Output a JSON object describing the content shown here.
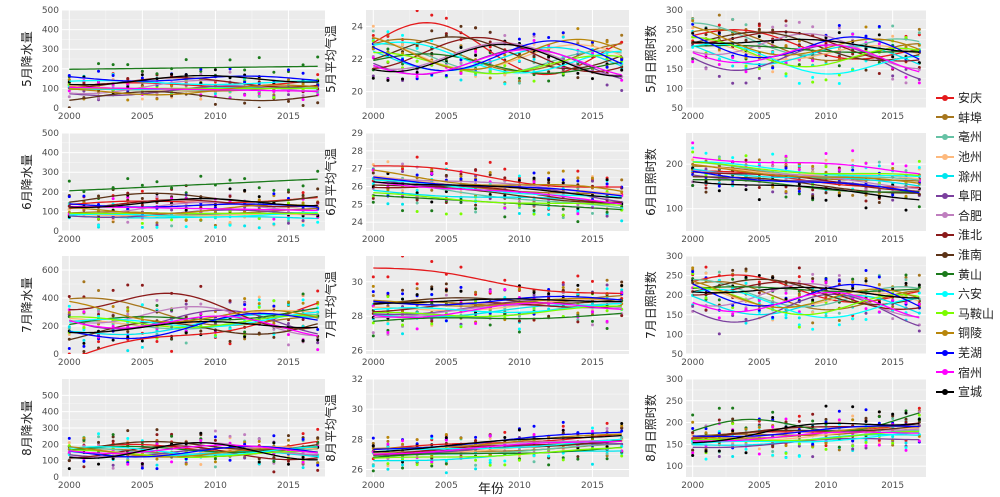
{
  "chart_data": {
    "type": "scatter",
    "x_axis_label": "年份",
    "x_range": [
      1999.5,
      2017.5
    ],
    "x_ticks": [
      2000,
      2005,
      2010,
      2015
    ],
    "legend": {
      "placement": "right",
      "entries": [
        {
          "name": "安庆",
          "color": "#e41a1c"
        },
        {
          "name": "蚌埠",
          "color": "#a6761d"
        },
        {
          "name": "亳州",
          "color": "#66c2a5"
        },
        {
          "name": "池州",
          "color": "#fdb97d"
        },
        {
          "name": "滁州",
          "color": "#00e5ee"
        },
        {
          "name": "阜阳",
          "color": "#7b3f9e"
        },
        {
          "name": "合肥",
          "color": "#bf7fbf"
        },
        {
          "name": "淮北",
          "color": "#8b1a1a"
        },
        {
          "name": "淮南",
          "color": "#5c3317"
        },
        {
          "name": "黄山",
          "color": "#1b7a1b"
        },
        {
          "name": "六安",
          "color": "#00ffff"
        },
        {
          "name": "马鞍山",
          "color": "#7cfc00"
        },
        {
          "name": "铜陵",
          "color": "#b8860b"
        },
        {
          "name": "芜湖",
          "color": "#0000ff"
        },
        {
          "name": "宿州",
          "color": "#ff00ff"
        },
        {
          "name": "宣城",
          "color": "#000000"
        }
      ]
    },
    "panels": [
      {
        "ylabel": "5月降水量",
        "ylim": [
          0,
          500
        ],
        "yticks": [
          0,
          100,
          200,
          300,
          400,
          500
        ],
        "base": [
          120,
          95,
          95,
          100,
          100,
          90,
          110,
          130,
          60,
          205,
          130,
          100,
          90,
          150,
          95,
          145
        ],
        "trend": [
          25,
          15,
          10,
          -10,
          0,
          20,
          15,
          5,
          10,
          15,
          0,
          0,
          20,
          -10,
          -20,
          15
        ],
        "wave": [
          15,
          10,
          5,
          10,
          5,
          20,
          30,
          25,
          25,
          0,
          10,
          0,
          20,
          15,
          0,
          20
        ],
        "noise": 50
      },
      {
        "ylabel": "5月平均气温",
        "ylim": [
          19,
          25
        ],
        "yticks": [
          20,
          22,
          24
        ],
        "base": [
          22.6,
          22.2,
          21.9,
          22.2,
          22,
          21.8,
          22.1,
          22.3,
          22.4,
          21.7,
          22,
          21.7,
          22.3,
          22.2,
          21.8,
          22
        ],
        "trend": [
          -0.8,
          -0.3,
          -0.5,
          -0.7,
          -0.4,
          -0.5,
          -0.4,
          -0.2,
          -0.3,
          -0.4,
          -0.6,
          -0.2,
          -0.3,
          -0.4,
          -0.2,
          -0.3
        ],
        "wave": [
          1.4,
          0.9,
          0.8,
          0.9,
          0.8,
          0.9,
          0.9,
          1,
          0.9,
          0.5,
          0.8,
          0.6,
          1,
          1,
          0.8,
          0.9
        ],
        "noise": 0.8
      },
      {
        "ylabel": "5月日照时数",
        "ylim": [
          50,
          300
        ],
        "yticks": [
          50,
          100,
          150,
          200,
          250,
          300
        ],
        "base": [
          210,
          205,
          215,
          195,
          185,
          175,
          205,
          215,
          210,
          200,
          170,
          185,
          210,
          205,
          185,
          215
        ],
        "trend": [
          -50,
          -40,
          -45,
          -35,
          -30,
          -35,
          -40,
          -50,
          -45,
          -15,
          -35,
          -30,
          -45,
          -40,
          -35,
          -25
        ],
        "wave": [
          25,
          30,
          30,
          25,
          30,
          40,
          35,
          25,
          25,
          5,
          30,
          30,
          30,
          35,
          30,
          10
        ],
        "noise": 40
      },
      {
        "ylabel": "6月降水量",
        "ylim": [
          0,
          500
        ],
        "yticks": [
          0,
          100,
          200,
          300,
          400,
          500
        ],
        "base": [
          150,
          95,
          85,
          80,
          70,
          90,
          120,
          140,
          170,
          235,
          80,
          90,
          110,
          130,
          115,
          145
        ],
        "trend": [
          30,
          20,
          10,
          0,
          -10,
          15,
          20,
          10,
          15,
          60,
          10,
          0,
          15,
          -10,
          -20,
          10
        ],
        "wave": [
          10,
          10,
          5,
          5,
          5,
          15,
          25,
          20,
          25,
          0,
          10,
          0,
          20,
          10,
          0,
          20
        ],
        "noise": 60
      },
      {
        "ylabel": "6月平均气温",
        "ylim": [
          23.5,
          29
        ],
        "yticks": [
          24,
          25,
          26,
          27,
          28,
          29
        ],
        "base": [
          26.5,
          25.9,
          25.5,
          26,
          25.4,
          25.9,
          26.1,
          25.7,
          25.6,
          25.1,
          25.8,
          25.2,
          26.2,
          26,
          25.7,
          25.9
        ],
        "trend": [
          -1.3,
          -0.9,
          -1.6,
          -1,
          -0.7,
          -1.2,
          -1,
          -0.9,
          -1.1,
          -0.8,
          -1,
          -0.7,
          -1.1,
          -1,
          -1.2,
          -0.9
        ],
        "wave": [
          0.2,
          0.1,
          0.1,
          0.1,
          0.1,
          0.2,
          0.1,
          0.2,
          0.1,
          0,
          0.1,
          0.1,
          0.2,
          0.1,
          0.1,
          0.1
        ],
        "noise": 1
      },
      {
        "ylabel": "6月日照时数",
        "ylim": [
          50,
          270
        ],
        "yticks": [
          100,
          200
        ],
        "base": [
          165,
          175,
          180,
          180,
          170,
          160,
          170,
          165,
          155,
          150,
          185,
          185,
          175,
          160,
          200,
          145
        ],
        "trend": [
          -40,
          -35,
          -40,
          -30,
          -35,
          -35,
          -40,
          -45,
          -40,
          -30,
          -35,
          -30,
          -40,
          -45,
          -35,
          -40
        ],
        "wave": [
          5,
          5,
          5,
          5,
          5,
          5,
          5,
          5,
          5,
          5,
          5,
          5,
          5,
          5,
          5,
          5
        ],
        "noise": 35
      },
      {
        "ylabel": "7月降水量",
        "ylim": [
          0,
          700
        ],
        "yticks": [
          0,
          200,
          400,
          600
        ],
        "base": [
          150,
          280,
          220,
          250,
          210,
          240,
          260,
          330,
          180,
          260,
          230,
          230,
          280,
          200,
          220,
          200
        ],
        "trend": [
          380,
          -150,
          50,
          60,
          120,
          -60,
          -100,
          -150,
          80,
          100,
          60,
          10,
          -90,
          120,
          -80,
          40
        ],
        "wave": [
          40,
          60,
          40,
          40,
          40,
          80,
          80,
          90,
          60,
          30,
          40,
          40,
          60,
          60,
          60,
          30
        ],
        "noise": 120
      },
      {
        "ylabel": "7月平均气温",
        "ylim": [
          25.8,
          31.5
        ],
        "yticks": [
          26,
          28,
          30
        ],
        "base": [
          30,
          28.8,
          28.2,
          28.6,
          28.3,
          28.6,
          28.4,
          28.6,
          28.9,
          27.9,
          28.4,
          28.2,
          28.8,
          28.9,
          28.4,
          28.9
        ],
        "trend": [
          -1.6,
          0.4,
          0.7,
          0.5,
          0.6,
          0.8,
          0.6,
          0.3,
          0.2,
          0.4,
          0.3,
          0.4,
          0.1,
          0.2,
          0.5,
          0.1
        ],
        "wave": [
          0.2,
          0.2,
          0.2,
          0.2,
          0.2,
          0.2,
          0.2,
          0.2,
          0.2,
          0.1,
          0.2,
          0.2,
          0.2,
          0.2,
          0.3,
          0.1
        ],
        "noise": 1
      },
      {
        "ylabel": "7月日照时数",
        "ylim": [
          50,
          300
        ],
        "yticks": [
          50,
          100,
          150,
          200,
          250,
          300
        ],
        "base": [
          215,
          195,
          200,
          190,
          175,
          165,
          195,
          205,
          210,
          215,
          175,
          180,
          195,
          200,
          180,
          210
        ],
        "trend": [
          -40,
          -25,
          -20,
          -30,
          -25,
          -20,
          -30,
          -40,
          -30,
          -5,
          -25,
          -20,
          -30,
          -35,
          -25,
          -15
        ],
        "wave": [
          25,
          30,
          30,
          25,
          30,
          40,
          35,
          25,
          25,
          5,
          30,
          30,
          30,
          35,
          30,
          10
        ],
        "noise": 40
      },
      {
        "ylabel": "8月降水量",
        "ylim": [
          0,
          600
        ],
        "yticks": [
          0,
          100,
          200,
          300,
          400,
          500
        ],
        "base": [
          180,
          150,
          155,
          160,
          140,
          150,
          170,
          150,
          190,
          170,
          160,
          140,
          150,
          155,
          170,
          160
        ],
        "trend": [
          40,
          10,
          -10,
          0,
          -20,
          10,
          20,
          -10,
          20,
          10,
          0,
          -10,
          -20,
          10,
          0,
          -10
        ],
        "wave": [
          30,
          25,
          20,
          25,
          20,
          25,
          40,
          40,
          30,
          20,
          25,
          20,
          30,
          30,
          25,
          50
        ],
        "noise": 80
      },
      {
        "ylabel": "8月平均气温",
        "ylim": [
          25.5,
          32
        ],
        "yticks": [
          26,
          28,
          30,
          32
        ],
        "base": [
          27.8,
          27.3,
          27.2,
          27.4,
          26.9,
          27.4,
          27.6,
          27.5,
          27.4,
          27.1,
          27.5,
          27,
          27.8,
          27.9,
          27.5,
          27.8
        ],
        "trend": [
          1,
          0.6,
          0.8,
          0.9,
          0.7,
          0.8,
          1,
          0.9,
          1.1,
          0.6,
          0.8,
          0.7,
          1,
          1.2,
          0.9,
          1.1
        ],
        "wave": [
          0.1,
          0.1,
          0.1,
          0.1,
          0.1,
          0.1,
          0.1,
          0.1,
          0.1,
          0.1,
          0.1,
          0.1,
          0.1,
          0.1,
          0.1,
          0.1
        ],
        "noise": 0.9
      },
      {
        "ylabel": "8月日照时数",
        "ylim": [
          75,
          300
        ],
        "yticks": [
          100,
          150,
          200,
          250,
          300
        ],
        "base": [
          180,
          175,
          165,
          170,
          160,
          155,
          175,
          185,
          180,
          195,
          160,
          165,
          175,
          180,
          170,
          185
        ],
        "trend": [
          30,
          20,
          25,
          30,
          25,
          20,
          30,
          35,
          25,
          30,
          25,
          20,
          30,
          25,
          20,
          45
        ],
        "wave": [
          5,
          5,
          5,
          5,
          5,
          5,
          5,
          5,
          5,
          20,
          5,
          5,
          5,
          5,
          5,
          10
        ],
        "noise": 40
      }
    ]
  }
}
